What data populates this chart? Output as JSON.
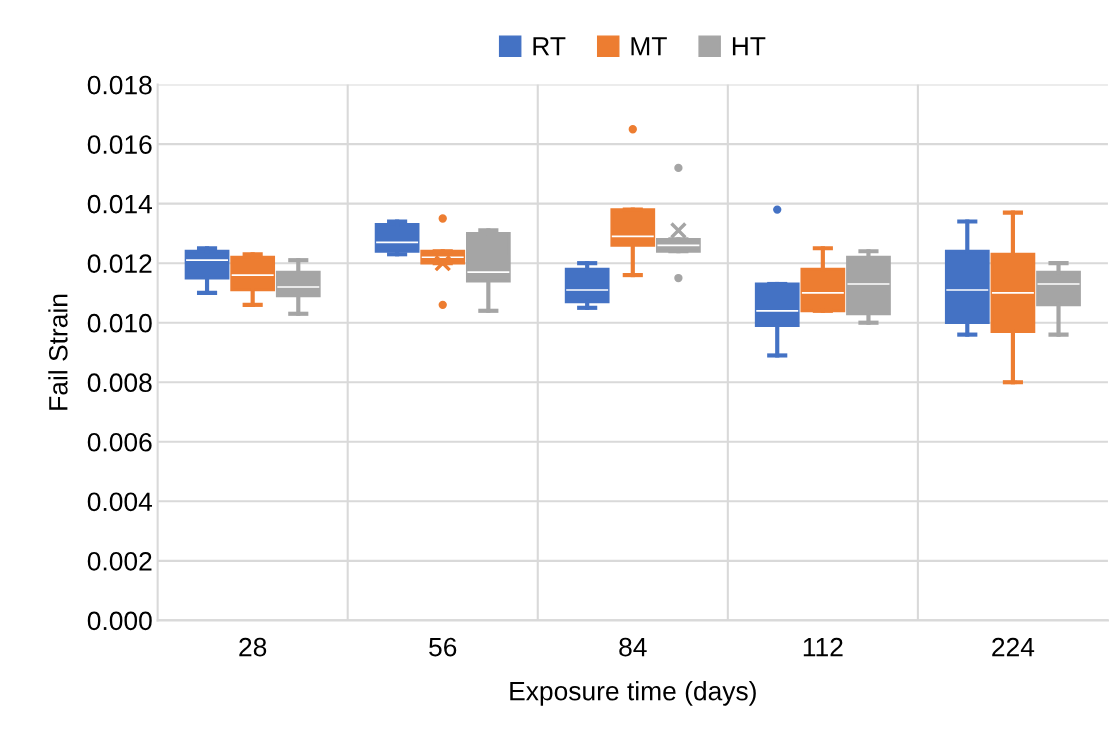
{
  "chart_data": {
    "type": "box",
    "xlabel": "Exposure time (days)",
    "ylabel": "Fail Strain",
    "categories": [
      "28",
      "56",
      "84",
      "112",
      "224"
    ],
    "ylim": [
      0,
      0.018
    ],
    "yticks": [
      {
        "value": 0,
        "label": "0.000"
      },
      {
        "value": 0.002,
        "label": "0.002"
      },
      {
        "value": 0.004,
        "label": "0.004"
      },
      {
        "value": 0.006,
        "label": "0.006"
      },
      {
        "value": 0.008,
        "label": "0.008"
      },
      {
        "value": 0.01,
        "label": "0.010"
      },
      {
        "value": 0.012,
        "label": "0.012"
      },
      {
        "value": 0.014,
        "label": "0.014"
      },
      {
        "value": 0.016,
        "label": "0.016"
      },
      {
        "value": 0.018,
        "label": "0.018"
      }
    ],
    "grid": true,
    "legend": "top",
    "series": [
      {
        "name": "RT",
        "color": "#4472c4",
        "boxes": [
          {
            "low": 0.011,
            "q1": 0.0115,
            "median": 0.0121,
            "q3": 0.0124,
            "high": 0.0125
          },
          {
            "low": 0.0123,
            "q1": 0.0124,
            "median": 0.0127,
            "q3": 0.0133,
            "high": 0.0134
          },
          {
            "low": 0.0105,
            "q1": 0.0107,
            "median": 0.0111,
            "q3": 0.0118,
            "high": 0.012
          },
          {
            "low": 0.0089,
            "q1": 0.0099,
            "median": 0.0104,
            "q3": 0.0113,
            "high": 0.0113,
            "outliers": [
              0.0138
            ]
          },
          {
            "low": 0.0096,
            "q1": 0.01,
            "median": 0.0111,
            "q3": 0.0124,
            "high": 0.0134
          }
        ]
      },
      {
        "name": "MT",
        "color": "#ed7d31",
        "boxes": [
          {
            "low": 0.0106,
            "q1": 0.0111,
            "median": 0.0116,
            "q3": 0.0122,
            "high": 0.0123
          },
          {
            "low": 0.012,
            "q1": 0.012,
            "median": 0.0122,
            "q3": 0.0124,
            "high": 0.0124,
            "mean": 0.012,
            "outliers": [
              0.0135,
              0.0106
            ]
          },
          {
            "low": 0.0116,
            "q1": 0.0126,
            "median": 0.0129,
            "q3": 0.0138,
            "high": 0.0138,
            "outliers": [
              0.0165
            ]
          },
          {
            "low": 0.0104,
            "q1": 0.0104,
            "median": 0.011,
            "q3": 0.0118,
            "high": 0.0125
          },
          {
            "low": 0.008,
            "q1": 0.0097,
            "median": 0.011,
            "q3": 0.0123,
            "high": 0.0137
          }
        ]
      },
      {
        "name": "HT",
        "color": "#a5a5a5",
        "boxes": [
          {
            "low": 0.0103,
            "q1": 0.0109,
            "median": 0.0112,
            "q3": 0.0117,
            "high": 0.0121
          },
          {
            "low": 0.0104,
            "q1": 0.0114,
            "median": 0.0117,
            "q3": 0.013,
            "high": 0.0131
          },
          {
            "low": 0.0124,
            "q1": 0.0124,
            "median": 0.0126,
            "q3": 0.0128,
            "high": 0.0128,
            "mean": 0.0131,
            "outliers": [
              0.0152,
              0.0115
            ]
          },
          {
            "low": 0.01,
            "q1": 0.0103,
            "median": 0.0113,
            "q3": 0.0122,
            "high": 0.0124
          },
          {
            "low": 0.0096,
            "q1": 0.0106,
            "median": 0.0113,
            "q3": 0.0117,
            "high": 0.012
          }
        ]
      }
    ]
  }
}
